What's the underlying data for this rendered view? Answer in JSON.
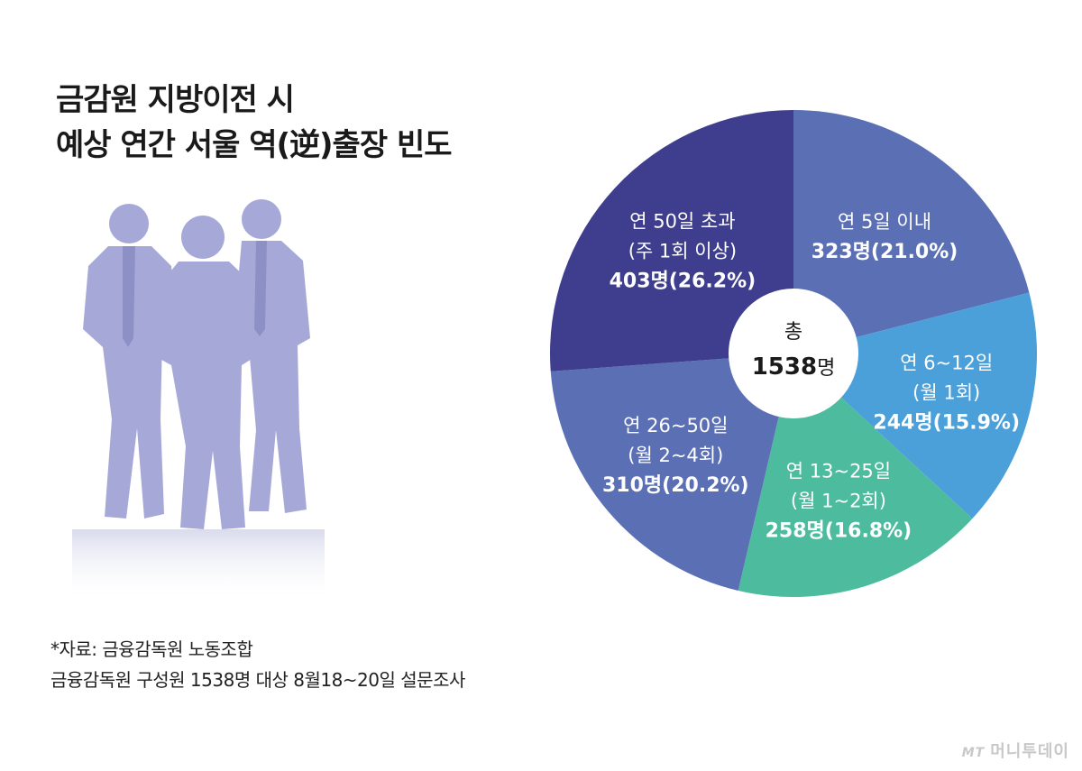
{
  "title_lines": [
    "금감원 지방이전 시",
    "예상 연간 서울 역(逆)출장 빈도"
  ],
  "source_lines": [
    "*자료: 금융감독원 노동조합",
    " 금융감독원 구성원 1538명 대상 8월18~20일 설문조사"
  ],
  "watermark": {
    "mark": "MT",
    "text": "머니투데이"
  },
  "chart_data": {
    "type": "pie",
    "center_label": {
      "line1": "총",
      "number": "1538",
      "unit": "명"
    },
    "slices": [
      {
        "label_lines": [
          "연 5일 이내"
        ],
        "count": "323명",
        "percent": "(21.0%)",
        "value": 21.0,
        "color": "#5b6fb5"
      },
      {
        "label_lines": [
          "연 6~12일",
          "(월 1회)"
        ],
        "count": "244명",
        "percent": "(15.9%)",
        "value": 15.9,
        "color": "#4ba0d9"
      },
      {
        "label_lines": [
          "연 13~25일",
          "(월 1~2회)"
        ],
        "count": "258명",
        "percent": "(16.8%)",
        "value": 16.8,
        "color": "#4dbb9d"
      },
      {
        "label_lines": [
          "연 26~50일",
          "(월 2~4회)"
        ],
        "count": "310명",
        "percent": "(20.2%)",
        "value": 20.2,
        "color": "#5b6fb5"
      },
      {
        "label_lines": [
          "연 50일 초과",
          "(주 1회 이상)"
        ],
        "count": "403명",
        "percent": "(26.2%)",
        "value": 26.2,
        "color": "#3f3e8e"
      }
    ]
  }
}
